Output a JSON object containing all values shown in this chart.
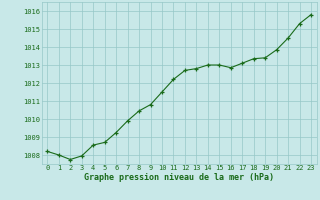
{
  "x": [
    0,
    1,
    2,
    3,
    4,
    5,
    6,
    7,
    8,
    9,
    10,
    11,
    12,
    13,
    14,
    15,
    16,
    17,
    18,
    19,
    20,
    21,
    22,
    23
  ],
  "y": [
    1008.2,
    1008.0,
    1007.75,
    1007.95,
    1008.55,
    1008.7,
    1009.25,
    1009.9,
    1010.45,
    1010.8,
    1011.5,
    1012.2,
    1012.7,
    1012.8,
    1013.0,
    1013.0,
    1012.85,
    1013.1,
    1013.35,
    1013.4,
    1013.85,
    1014.5,
    1015.3,
    1015.8
  ],
  "ylim": [
    1007.5,
    1016.5
  ],
  "yticks": [
    1008,
    1009,
    1010,
    1011,
    1012,
    1013,
    1014,
    1015,
    1016
  ],
  "xlabel": "Graphe pression niveau de la mer (hPa)",
  "line_color": "#1a6b1a",
  "marker_color": "#1a6b1a",
  "bg_color": "#c8e8e8",
  "grid_color": "#96c8c8",
  "label_color": "#1a6b1a"
}
